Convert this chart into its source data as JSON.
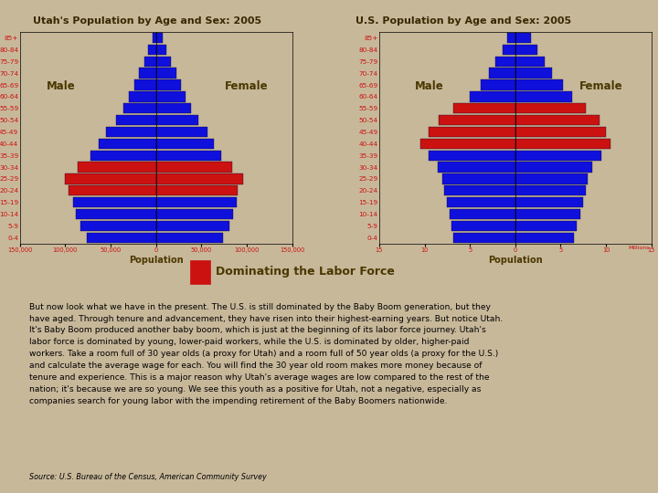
{
  "bg_color": "#c8b89a",
  "title_utah": "Utah's Population by Age and Sex: 2005",
  "title_us": "U.S. Population by Age and Sex: 2005",
  "title_color": "#3a2800",
  "age_labels": [
    "85+",
    "80-84",
    "75-79",
    "70-74",
    "65-69",
    "60-64",
    "55-59",
    "50-54",
    "45-49",
    "40-44",
    "35-39",
    "30-34",
    "25-29",
    "20-24",
    "15-19",
    "10-14",
    "5-9",
    "0-4"
  ],
  "utah_male": [
    4000,
    9000,
    13000,
    19000,
    24000,
    30000,
    36000,
    44000,
    55000,
    63000,
    72000,
    86000,
    100000,
    96000,
    91000,
    88000,
    83000,
    76000
  ],
  "utah_female": [
    7000,
    12000,
    17000,
    23000,
    28000,
    33000,
    39000,
    47000,
    57000,
    64000,
    72000,
    84000,
    96000,
    90000,
    89000,
    85000,
    81000,
    74000
  ],
  "us_male": [
    0.9,
    1.4,
    2.2,
    2.9,
    3.8,
    5.0,
    6.8,
    8.4,
    9.5,
    10.5,
    9.5,
    8.5,
    8.0,
    7.8,
    7.5,
    7.2,
    7.0,
    6.8
  ],
  "us_female": [
    1.7,
    2.4,
    3.2,
    4.0,
    5.3,
    6.3,
    7.8,
    9.3,
    10.0,
    10.5,
    9.5,
    8.5,
    8.0,
    7.8,
    7.5,
    7.2,
    6.8,
    6.5
  ],
  "utah_red_indices": [
    11,
    12,
    13
  ],
  "us_red_indices": [
    6,
    7,
    8,
    9
  ],
  "bar_blue": "#1010dd",
  "bar_red": "#cc1111",
  "bar_edge": "#000022",
  "axis_tick_color": "#cc1111",
  "label_color": "#4a3800",
  "legend_text": "Dominating the Labor Force",
  "body_text": "But now look what we have in the present. The U.S. is still dominated by the Baby Boom generation, but they\nhave aged. Through tenure and advancement, they have risen into their highest-earning years. But notice Utah.\nIt's Baby Boom produced another baby boom, which is just at the beginning of its labor force journey. Utah's\nlabor force is dominated by young, lower-paid workers, while the U.S. is dominated by older, higher-paid\nworkers. Take a room full of 30 year olds (a proxy for Utah) and a room full of 50 year olds (a proxy for the U.S.)\nand calculate the average wage for each. You will find the 30 year old room makes more money because of\ntenure and experience. This is a major reason why Utah's average wages are low compared to the rest of the\nnation; it's because we are so young. We see this youth as a positive for Utah, not a negative, especially as\ncompanies search for young labor with the impending retirement of the Baby Boomers nationwide.",
  "source_text": "Source: U.S. Bureau of the Census, American Community Survey",
  "utah_xlim": 150000,
  "us_xlim": 15
}
